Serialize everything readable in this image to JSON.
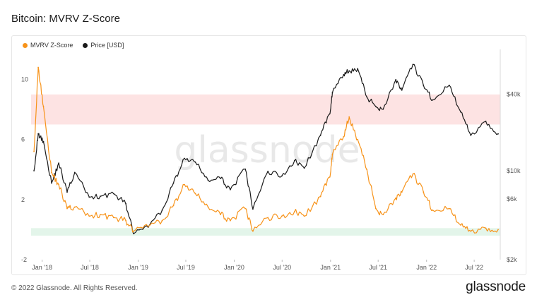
{
  "header": {
    "title": "Bitcoin: MVRV Z-Score"
  },
  "legend": [
    {
      "label": "MVRV Z-Score",
      "color": "#f7931a"
    },
    {
      "label": "Price [USD]",
      "color": "#1a1a1a"
    }
  ],
  "watermark": "glassnode",
  "footer": {
    "copyright": "© 2022 Glassnode. All Rights Reserved.",
    "logo": "glassnode"
  },
  "chart_data": {
    "type": "line",
    "x_ticks": [
      "Jan '18",
      "Jul '18",
      "Jan '19",
      "Jul '19",
      "Jan '20",
      "Jul '20",
      "Jan '21",
      "Jul '21",
      "Jan '22",
      "Jul '22"
    ],
    "y_left": {
      "ticks": [
        -2,
        2,
        6,
        10
      ],
      "range": [
        -2,
        12
      ]
    },
    "y_right": {
      "ticks": [
        "$2k",
        "$6k",
        "$10k",
        "$40k"
      ],
      "scale": "log"
    },
    "bands": [
      {
        "zone": "high",
        "from": 7,
        "to": 9,
        "color": "#fde3e3"
      },
      {
        "zone": "low",
        "from": 0.1,
        "to": -0.4,
        "color": "#e3f5ea"
      }
    ],
    "series": [
      {
        "name": "MVRV Z-Score",
        "color": "#f7931a",
        "axis": "left",
        "x": [
          "2017-12-01",
          "2017-12-17",
          "2018-01-06",
          "2018-02-06",
          "2018-03-05",
          "2018-04-06",
          "2018-05-05",
          "2018-06-29",
          "2018-08-10",
          "2018-09-30",
          "2018-11-15",
          "2018-12-15",
          "2019-02-08",
          "2019-04-02",
          "2019-05-15",
          "2019-06-26",
          "2019-08-06",
          "2019-09-24",
          "2019-11-10",
          "2019-12-17",
          "2020-02-12",
          "2020-03-12",
          "2020-05-08",
          "2020-06-30",
          "2020-08-17",
          "2020-09-23",
          "2020-11-24",
          "2020-12-29",
          "2021-01-08",
          "2021-02-20",
          "2021-03-13",
          "2021-04-14",
          "2021-05-19",
          "2021-06-22",
          "2021-07-20",
          "2021-09-06",
          "2021-09-29",
          "2021-11-10",
          "2021-12-20",
          "2022-01-24",
          "2022-03-28",
          "2022-05-11",
          "2022-06-18",
          "2022-08-14",
          "2022-09-30"
        ],
        "y": [
          5.2,
          10.8,
          8.2,
          3.8,
          3.0,
          1.4,
          1.5,
          0.9,
          1.0,
          0.8,
          0.6,
          -0.1,
          0.2,
          0.6,
          1.6,
          3.0,
          2.4,
          1.5,
          1.0,
          0.6,
          1.4,
          -0.1,
          0.8,
          0.9,
          1.2,
          0.9,
          2.2,
          3.5,
          5.0,
          6.2,
          7.5,
          6.0,
          4.0,
          1.4,
          1.0,
          2.1,
          2.5,
          3.7,
          2.5,
          1.3,
          1.4,
          0.3,
          -0.1,
          0.1,
          0.0
        ]
      },
      {
        "name": "Price [USD]",
        "color": "#1a1a1a",
        "axis": "right",
        "x": [
          "2017-12-01",
          "2017-12-17",
          "2018-01-06",
          "2018-02-06",
          "2018-03-05",
          "2018-04-06",
          "2018-05-05",
          "2018-06-29",
          "2018-08-10",
          "2018-09-30",
          "2018-11-15",
          "2018-12-15",
          "2019-02-08",
          "2019-04-02",
          "2019-05-15",
          "2019-06-26",
          "2019-08-06",
          "2019-09-24",
          "2019-11-10",
          "2019-12-17",
          "2020-02-12",
          "2020-03-12",
          "2020-05-08",
          "2020-06-30",
          "2020-08-17",
          "2020-09-23",
          "2020-11-24",
          "2020-12-29",
          "2021-01-08",
          "2021-02-20",
          "2021-03-13",
          "2021-04-14",
          "2021-05-19",
          "2021-06-22",
          "2021-07-20",
          "2021-09-06",
          "2021-09-29",
          "2021-11-10",
          "2021-12-20",
          "2022-01-24",
          "2022-03-28",
          "2022-05-11",
          "2022-06-18",
          "2022-08-14",
          "2022-09-30"
        ],
        "y": [
          10000,
          19500,
          17000,
          8000,
          11500,
          6800,
          9700,
          6200,
          6300,
          6600,
          5500,
          3200,
          3600,
          4900,
          8000,
          12500,
          11700,
          8400,
          8700,
          7100,
          10300,
          5000,
          9900,
          9100,
          12000,
          10500,
          19000,
          28000,
          41000,
          57000,
          61000,
          63500,
          38000,
          32000,
          30500,
          52000,
          43000,
          68500,
          47000,
          36000,
          47000,
          29000,
          19000,
          24500,
          19500
        ]
      }
    ]
  }
}
